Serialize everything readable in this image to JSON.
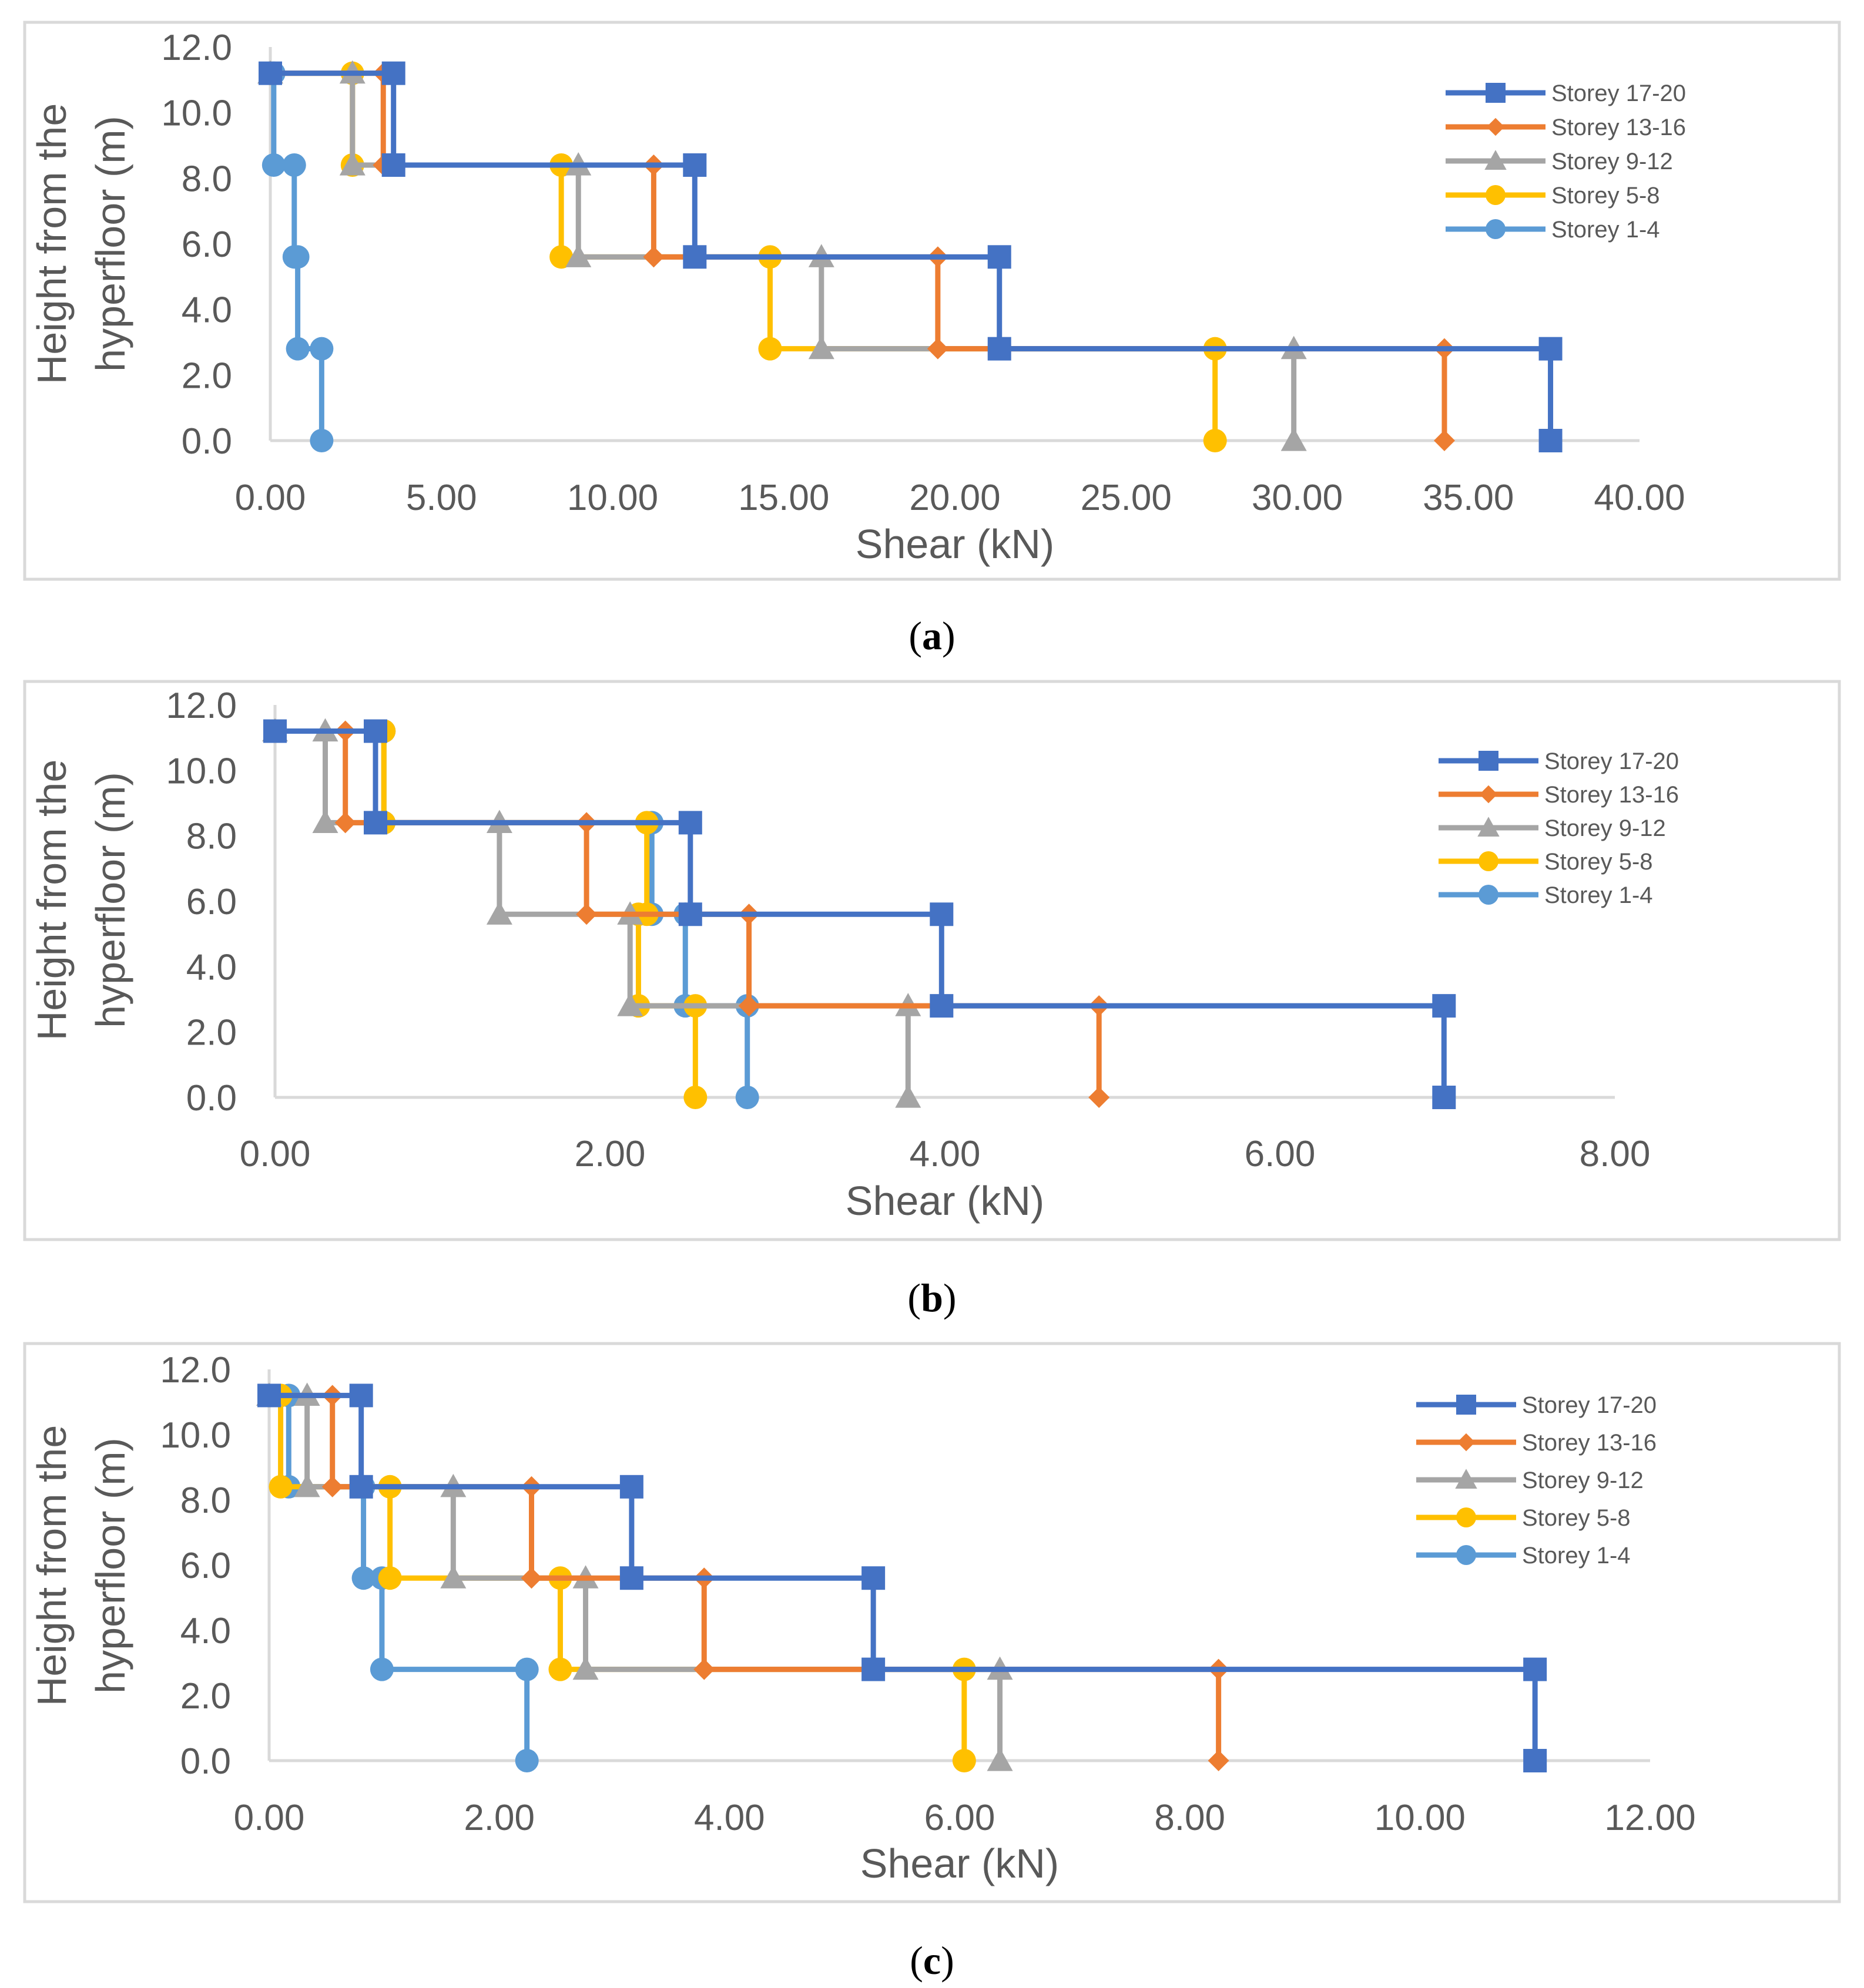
{
  "colors": {
    "storey_17_20": "#4472C4",
    "storey_13_16": "#ED7D31",
    "storey_9_12": "#A5A5A5",
    "storey_5_8": "#FFC000",
    "storey_1_4": "#5B9BD5",
    "axis": "#D9D9D9",
    "text": "#595959"
  },
  "chart_data": [
    {
      "id": "a",
      "type": "line",
      "caption": "(a)",
      "caption_letter": "a",
      "xlabel": "Shear (kN)",
      "ylabel_line1": "Height from the",
      "ylabel_line2": "hyperfloor (m)",
      "xlim": [
        0,
        40
      ],
      "ylim": [
        0,
        12
      ],
      "xticks": [
        "0.00",
        "5.00",
        "10.00",
        "15.00",
        "20.00",
        "25.00",
        "30.00",
        "35.00",
        "40.00"
      ],
      "yticks": [
        "0.0",
        "2.0",
        "4.0",
        "6.0",
        "8.0",
        "10.0",
        "12.0"
      ],
      "legend_position": "top-right",
      "series": [
        {
          "name": "Storey 17-20",
          "color": "#4472C4",
          "marker": "square",
          "x": [
            0.0,
            3.6,
            3.6,
            12.4,
            12.4,
            21.3,
            21.3,
            37.4,
            37.4
          ],
          "y": [
            11.2,
            11.2,
            8.4,
            8.4,
            5.6,
            5.6,
            2.8,
            2.8,
            0.0
          ]
        },
        {
          "name": "Storey 13-16",
          "color": "#ED7D31",
          "marker": "diamond",
          "x": [
            0.0,
            3.3,
            3.3,
            11.2,
            11.2,
            19.5,
            19.5,
            34.3,
            34.3
          ],
          "y": [
            11.2,
            11.2,
            8.4,
            8.4,
            5.6,
            5.6,
            2.8,
            2.8,
            0.0
          ]
        },
        {
          "name": "Storey 9-12",
          "color": "#A5A5A5",
          "marker": "triangle",
          "x": [
            0.0,
            2.4,
            2.4,
            9.0,
            9.0,
            16.1,
            16.1,
            29.9,
            29.9
          ],
          "y": [
            11.2,
            11.2,
            8.4,
            8.4,
            5.6,
            5.6,
            2.8,
            2.8,
            0.0
          ]
        },
        {
          "name": "Storey 5-8",
          "color": "#FFC000",
          "marker": "circle",
          "x": [
            0.0,
            2.4,
            2.4,
            8.5,
            8.5,
            14.6,
            14.6,
            27.6,
            27.6
          ],
          "y": [
            11.2,
            11.2,
            8.4,
            8.4,
            5.6,
            5.6,
            2.8,
            2.8,
            0.0
          ]
        },
        {
          "name": "Storey 1-4",
          "color": "#5B9BD5",
          "marker": "circle",
          "x": [
            0.0,
            0.1,
            0.1,
            0.7,
            0.7,
            0.8,
            0.8,
            1.5,
            1.5
          ],
          "y": [
            11.2,
            11.2,
            8.4,
            8.4,
            5.6,
            5.6,
            2.8,
            2.8,
            0.0
          ]
        }
      ]
    },
    {
      "id": "b",
      "type": "line",
      "caption": "(b)",
      "caption_letter": "b",
      "xlabel": "Shear (kN)",
      "ylabel_line1": "Height from the",
      "ylabel_line2": "hyperfloor (m)",
      "xlim": [
        0,
        8
      ],
      "ylim": [
        0,
        12
      ],
      "xticks": [
        "0.00",
        "2.00",
        "4.00",
        "6.00",
        "8.00"
      ],
      "yticks": [
        "0.0",
        "2.0",
        "4.0",
        "6.0",
        "8.0",
        "10.0",
        "12.0"
      ],
      "legend_position": "top-right",
      "series": [
        {
          "name": "Storey 17-20",
          "color": "#4472C4",
          "marker": "square",
          "x": [
            0.0,
            0.6,
            0.6,
            2.48,
            2.48,
            3.98,
            3.98,
            6.98,
            6.98
          ],
          "y": [
            11.2,
            11.2,
            8.4,
            8.4,
            5.6,
            5.6,
            2.8,
            2.8,
            0.0
          ]
        },
        {
          "name": "Storey 13-16",
          "color": "#ED7D31",
          "marker": "diamond",
          "x": [
            0.0,
            0.42,
            0.42,
            1.86,
            1.86,
            2.83,
            2.83,
            4.92,
            4.92
          ],
          "y": [
            11.2,
            11.2,
            8.4,
            8.4,
            5.6,
            5.6,
            2.8,
            2.8,
            0.0
          ]
        },
        {
          "name": "Storey 9-12",
          "color": "#A5A5A5",
          "marker": "triangle",
          "x": [
            0.0,
            0.3,
            0.3,
            1.34,
            1.34,
            2.12,
            2.12,
            3.78,
            3.78
          ],
          "y": [
            11.2,
            11.2,
            8.4,
            8.4,
            5.6,
            5.6,
            2.8,
            2.8,
            0.0
          ]
        },
        {
          "name": "Storey 5-8",
          "color": "#FFC000",
          "marker": "circle",
          "x": [
            0.0,
            0.65,
            0.65,
            2.22,
            2.22,
            2.17,
            2.17,
            2.51,
            2.51
          ],
          "y": [
            11.2,
            11.2,
            8.4,
            8.4,
            5.6,
            5.6,
            2.8,
            2.8,
            0.0
          ]
        },
        {
          "name": "Storey 1-4",
          "color": "#5B9BD5",
          "marker": "circle",
          "x": [
            0.0,
            0.65,
            0.65,
            2.25,
            2.25,
            2.45,
            2.45,
            2.82,
            2.82
          ],
          "y": [
            11.2,
            11.2,
            8.4,
            8.4,
            5.6,
            5.6,
            2.8,
            2.8,
            0.0
          ]
        }
      ]
    },
    {
      "id": "c",
      "type": "line",
      "caption": "(c)",
      "caption_letter": "c",
      "xlabel": "Shear (kN)",
      "ylabel_line1": "Height from the",
      "ylabel_line2": "hyperfloor (m)",
      "xlim": [
        0,
        12
      ],
      "ylim": [
        0,
        12
      ],
      "xticks": [
        "0.00",
        "2.00",
        "4.00",
        "6.00",
        "8.00",
        "10.00",
        "12.00"
      ],
      "yticks": [
        "0.0",
        "2.0",
        "4.0",
        "6.0",
        "8.0",
        "10.0",
        "12.0"
      ],
      "legend_position": "top-right",
      "series": [
        {
          "name": "Storey 17-20",
          "color": "#4472C4",
          "marker": "square",
          "x": [
            0.0,
            0.8,
            0.8,
            3.15,
            3.15,
            5.25,
            5.25,
            11.0,
            11.0
          ],
          "y": [
            11.2,
            11.2,
            8.4,
            8.4,
            5.6,
            5.6,
            2.8,
            2.8,
            0.0
          ]
        },
        {
          "name": "Storey 13-16",
          "color": "#ED7D31",
          "marker": "diamond",
          "x": [
            0.0,
            0.55,
            0.55,
            2.28,
            2.28,
            3.78,
            3.78,
            8.25,
            8.25
          ],
          "y": [
            11.2,
            11.2,
            8.4,
            8.4,
            5.6,
            5.6,
            2.8,
            2.8,
            0.0
          ]
        },
        {
          "name": "Storey 9-12",
          "color": "#A5A5A5",
          "marker": "triangle",
          "x": [
            0.0,
            0.33,
            0.33,
            1.6,
            1.6,
            2.75,
            2.75,
            6.35,
            6.35
          ],
          "y": [
            11.2,
            11.2,
            8.4,
            8.4,
            5.6,
            5.6,
            2.8,
            2.8,
            0.0
          ]
        },
        {
          "name": "Storey 5-8",
          "color": "#FFC000",
          "marker": "circle",
          "x": [
            0.0,
            0.1,
            0.1,
            1.05,
            1.05,
            2.53,
            2.53,
            6.04,
            6.04
          ],
          "y": [
            11.2,
            11.2,
            8.4,
            8.4,
            5.6,
            5.6,
            2.8,
            2.8,
            0.0
          ]
        },
        {
          "name": "Storey 1-4",
          "color": "#5B9BD5",
          "marker": "circle",
          "x": [
            0.0,
            0.17,
            0.17,
            0.82,
            0.82,
            0.98,
            0.98,
            2.24,
            2.24
          ],
          "y": [
            11.2,
            11.2,
            8.4,
            8.4,
            5.6,
            5.6,
            2.8,
            2.8,
            0.0
          ]
        }
      ]
    }
  ]
}
